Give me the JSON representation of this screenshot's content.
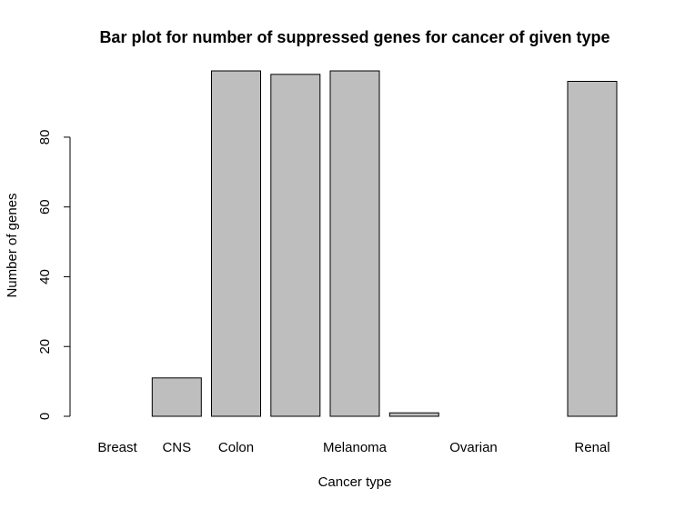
{
  "chart_data": {
    "type": "bar",
    "title": "Bar plot for number of suppressed genes for cancer of given type",
    "xlabel": "Cancer type",
    "ylabel": "Number of genes",
    "categories": [
      "Breast",
      "CNS",
      "Colon",
      "",
      "Melanoma",
      "",
      "Ovarian",
      "",
      "Renal"
    ],
    "values": [
      0,
      11,
      99,
      98,
      99,
      1,
      0,
      0,
      96
    ],
    "ylim": [
      0,
      99
    ],
    "yticks": [
      0,
      20,
      40,
      60,
      80
    ],
    "grid": false,
    "legend": "none",
    "colors": {
      "bar_fill": "#bebebe",
      "bar_stroke": "#000000"
    }
  }
}
